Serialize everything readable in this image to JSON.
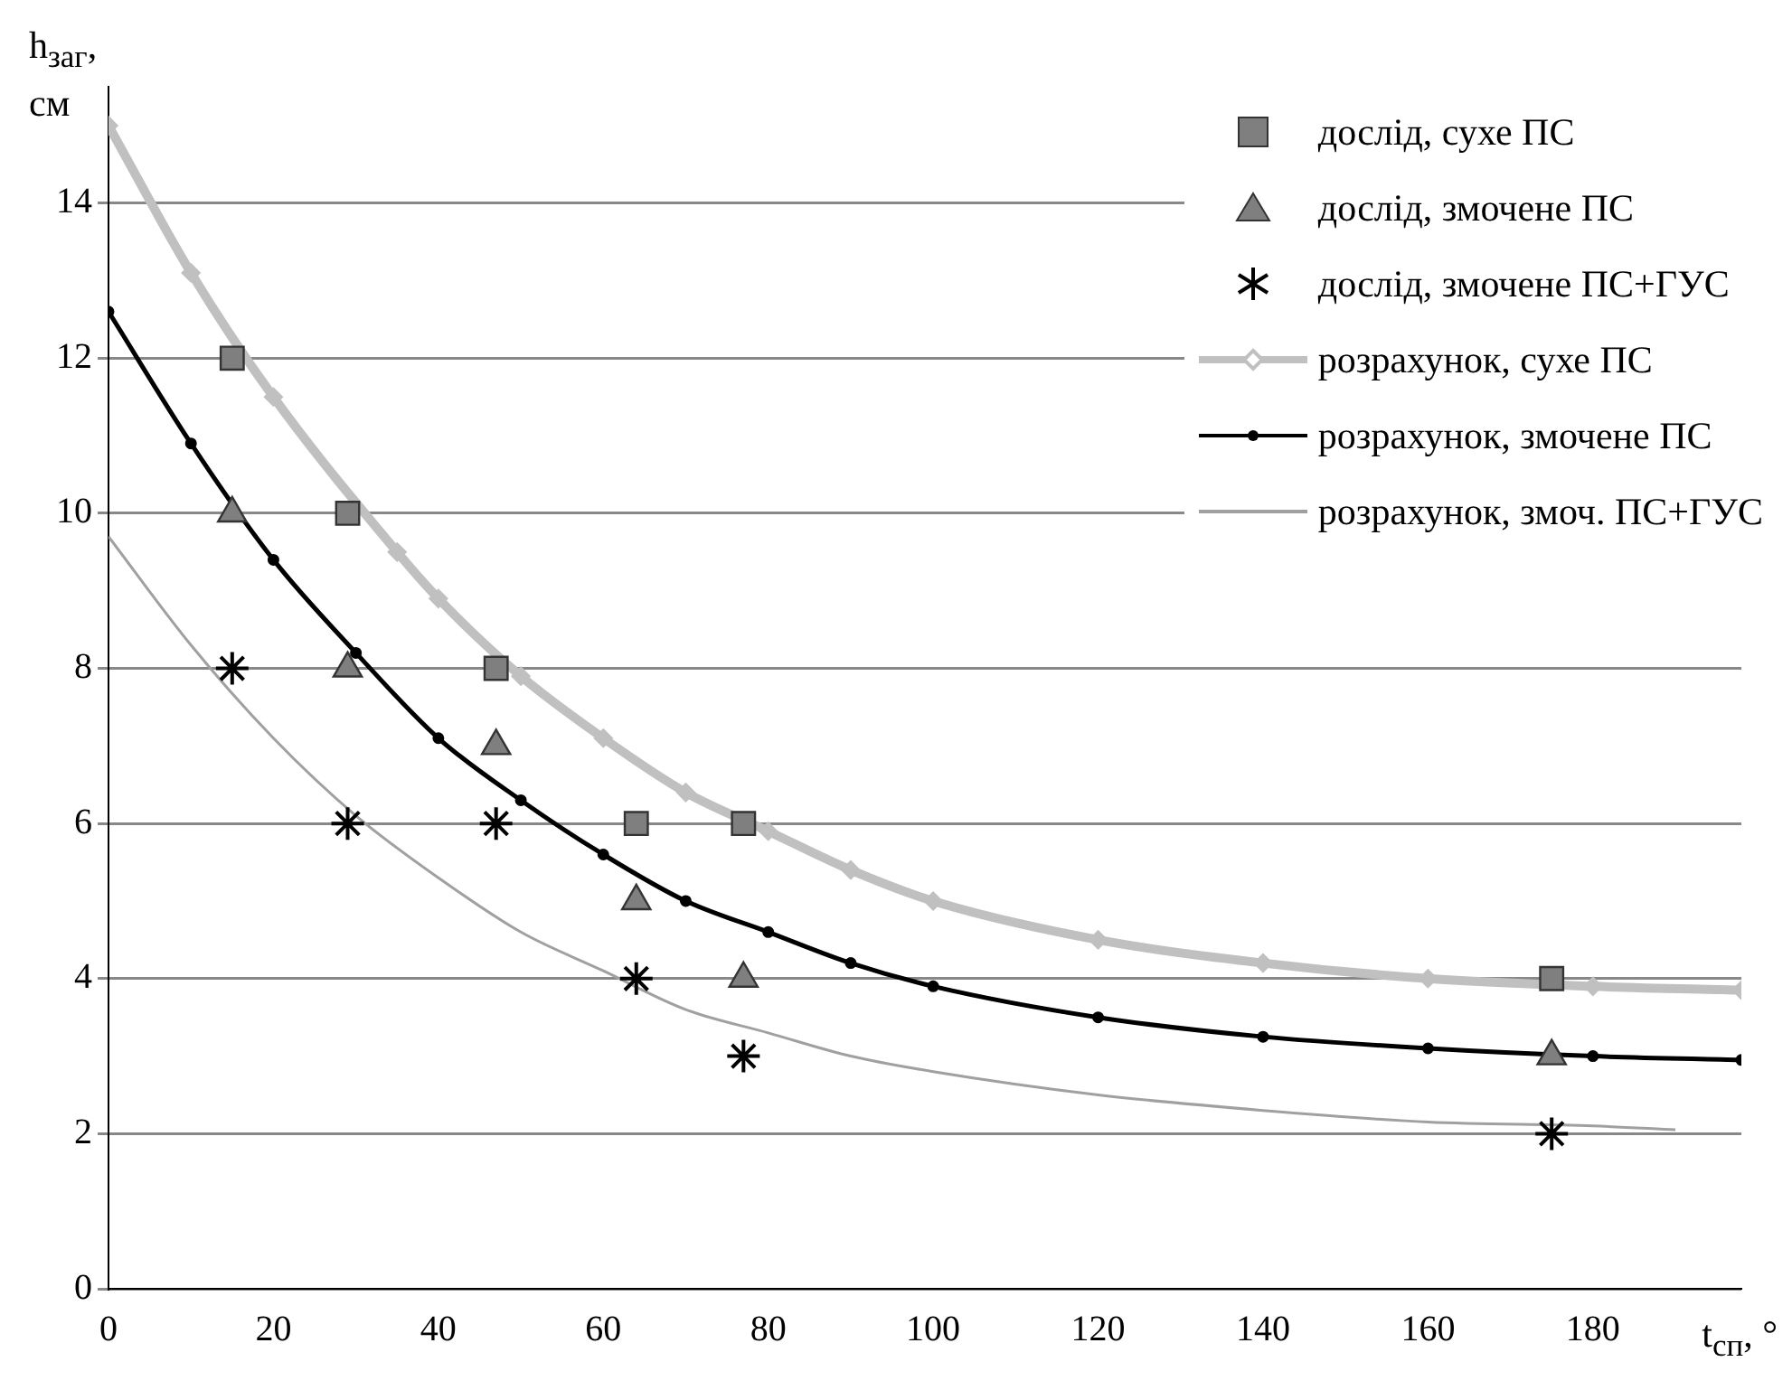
{
  "chart_data": {
    "type": "scatter",
    "xlabel": "t$_{сп}$, °",
    "ylabel": "h$_{заг}$, см",
    "xlim": [
      0,
      198
    ],
    "ylim": [
      0,
      15.5
    ],
    "xticks": [
      0,
      20,
      40,
      60,
      80,
      100,
      120,
      140,
      160,
      180
    ],
    "yticks": [
      0,
      2,
      4,
      6,
      8,
      10,
      12,
      14
    ],
    "grid": "y",
    "legend": "top right",
    "series": [
      {
        "name": "дослід, сухе ПС",
        "marker": "square",
        "color": "#7f7f7f",
        "x": [
          15,
          29,
          47,
          64,
          77,
          175
        ],
        "values": [
          12,
          10,
          8,
          6,
          6,
          4
        ]
      },
      {
        "name": "дослід, змочене ПС",
        "marker": "triangle",
        "color": "#7f7f7f",
        "x": [
          15,
          29,
          47,
          64,
          77,
          175
        ],
        "values": [
          10,
          8,
          7,
          5,
          4,
          3
        ]
      },
      {
        "name": "дослід, змочене ПС+ГУС",
        "marker": "cross",
        "color": "#000000",
        "x": [
          15,
          29,
          47,
          64,
          77,
          175
        ],
        "values": [
          8,
          6,
          6,
          4,
          3,
          2
        ]
      },
      {
        "name": "розрахунок, сухе ПС",
        "type": "line",
        "marker": "diamond",
        "color": "#c0c0c0",
        "x": [
          0,
          10,
          20,
          35,
          40,
          50,
          60,
          70,
          80,
          90,
          100,
          120,
          140,
          160,
          180,
          198
        ],
        "values": [
          15,
          13.1,
          11.5,
          9.5,
          8.9,
          7.9,
          7.1,
          6.4,
          5.9,
          5.4,
          5,
          4.5,
          4.2,
          4,
          3.9,
          3.85
        ]
      },
      {
        "name": "розрахунок, змочене ПС",
        "type": "line",
        "marker": "circle",
        "color": "#000000",
        "x": [
          0,
          10,
          20,
          30,
          40,
          50,
          60,
          70,
          80,
          90,
          100,
          120,
          140,
          160,
          180,
          198
        ],
        "values": [
          12.6,
          10.9,
          9.4,
          8.2,
          7.1,
          6.3,
          5.6,
          5,
          4.6,
          4.2,
          3.9,
          3.5,
          3.25,
          3.1,
          3,
          2.95
        ]
      },
      {
        "name": "розрахунок, змоч. ПС+ГУС",
        "type": "line",
        "marker": "none",
        "color": "#a0a0a0",
        "x": [
          0,
          10,
          20,
          30,
          40,
          50,
          60,
          70,
          80,
          90,
          100,
          120,
          140,
          160,
          180,
          190
        ],
        "values": [
          9.7,
          8.3,
          7.1,
          6.1,
          5.3,
          4.6,
          4.1,
          3.6,
          3.3,
          3,
          2.8,
          2.5,
          2.3,
          2.15,
          2.1,
          2.05
        ]
      }
    ]
  }
}
